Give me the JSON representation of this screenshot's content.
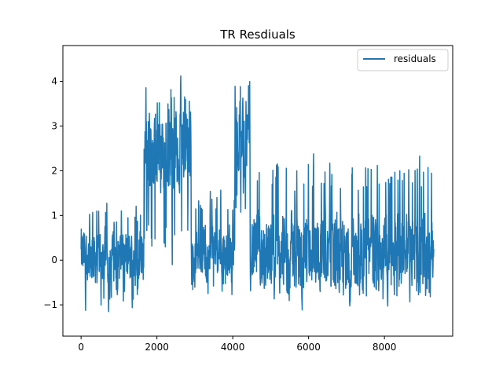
{
  "chart_data": {
    "type": "line",
    "title": "TR Resdiuals",
    "xlabel": "",
    "ylabel": "",
    "xlim": [
      -480,
      9800
    ],
    "ylim": [
      -1.7,
      4.8
    ],
    "x_ticks": [
      0,
      2000,
      4000,
      6000,
      8000
    ],
    "x_tick_labels": [
      "0",
      "2000",
      "4000",
      "6000",
      "8000"
    ],
    "y_ticks": [
      -1,
      0,
      1,
      2,
      3,
      4
    ],
    "y_tick_labels": [
      "−1",
      "0",
      "1",
      "2",
      "3",
      "4"
    ],
    "grid": false,
    "legend": {
      "placement": "top-right",
      "entries": [
        "residuals"
      ]
    },
    "colors": {
      "residuals": "#1f77b4"
    },
    "series": [
      {
        "name": "residuals",
        "n_points": 9300,
        "x_range": [
          0,
          9300
        ],
        "segments": [
          {
            "x_start": 0,
            "x_end": 1650,
            "band_low": -1.3,
            "band_high": 1.6,
            "center": 0.1
          },
          {
            "x_start": 1650,
            "x_end": 2900,
            "band_low": -0.4,
            "band_high": 4.4,
            "center": 2.5
          },
          {
            "x_start": 2900,
            "x_end": 4050,
            "band_low": -1.0,
            "band_high": 1.8,
            "center": 0.2
          },
          {
            "x_start": 4050,
            "x_end": 4450,
            "band_low": 0.6,
            "band_high": 4.55,
            "center": 2.8
          },
          {
            "x_start": 4450,
            "x_end": 9300,
            "band_low": -1.2,
            "band_high": 2.7,
            "center": 0.2
          }
        ]
      }
    ]
  }
}
